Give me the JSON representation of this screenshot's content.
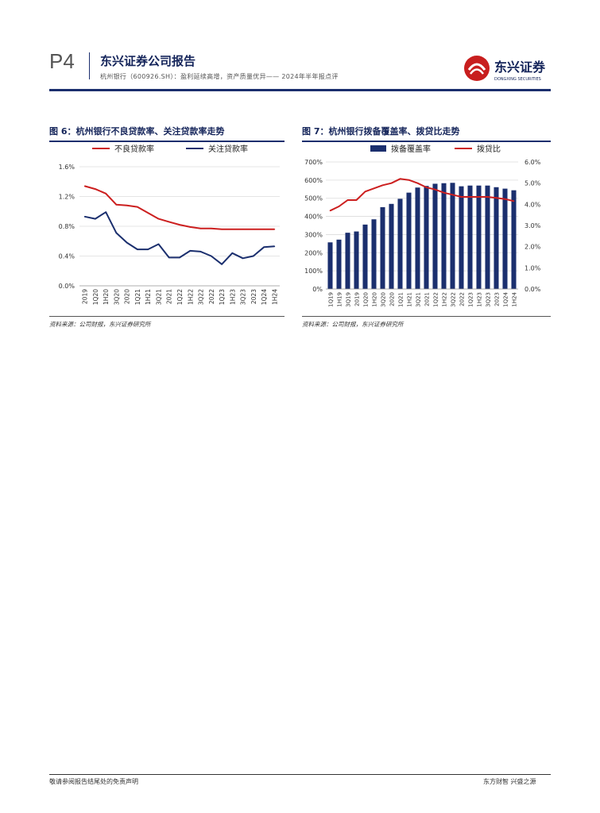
{
  "header": {
    "page_number": "P4",
    "company_title": "东兴证券公司报告",
    "subtitle": "杭州银行（600926.SH）：盈利延续高增，资产质量优异—— 2024年半年报点评",
    "logo_text": "东兴证券",
    "logo_en": "DONGXING SECURITIES"
  },
  "figure6": {
    "title": "图 6：杭州银行不良贷款率、关注贷款率走势",
    "source": "资料来源：公司财报，东兴证券研究所"
  },
  "figure7": {
    "title": "图 7：杭州银行拨备覆盖率、拨贷比走势",
    "source": "资料来源：公司财报，东兴证券研究所"
  },
  "footer": {
    "left": "敬请参阅报告结尾处的免责声明",
    "right": "东方财智  兴盛之源"
  },
  "colors": {
    "navy": "#1b2f6e",
    "red": "#cc1f1f",
    "grid": "#dcdcdc"
  },
  "chart_data": [
    {
      "type": "line",
      "categories": [
        "2019",
        "1Q20",
        "1H20",
        "3Q20",
        "2020",
        "1Q21",
        "1H21",
        "3Q21",
        "2021",
        "1Q22",
        "1H22",
        "3Q22",
        "2022",
        "1Q23",
        "1H23",
        "3Q23",
        "2023",
        "1Q24",
        "1H24"
      ],
      "series": [
        {
          "name": "不良贷款率",
          "color": "#cc1f1f",
          "values": [
            1.34,
            1.3,
            1.24,
            1.09,
            1.08,
            1.06,
            0.98,
            0.9,
            0.86,
            0.82,
            0.79,
            0.77,
            0.77,
            0.76,
            0.76,
            0.76,
            0.76,
            0.76,
            0.76
          ]
        },
        {
          "name": "关注贷款率",
          "color": "#1b2f6e",
          "values": [
            0.93,
            0.9,
            0.99,
            0.71,
            0.58,
            0.49,
            0.49,
            0.56,
            0.38,
            0.38,
            0.47,
            0.46,
            0.4,
            0.29,
            0.44,
            0.37,
            0.4,
            0.52,
            0.53
          ]
        }
      ],
      "ylim": [
        0,
        1.6
      ],
      "yticks": [
        "0.0%",
        "0.4%",
        "0.8%",
        "1.2%",
        "1.6%"
      ],
      "title": "图 6：杭州银行不良贷款率、关注贷款率走势"
    },
    {
      "type": "bar",
      "categories": [
        "1Q19",
        "1H19",
        "3Q19",
        "2019",
        "1Q20",
        "1H20",
        "3Q20",
        "2020",
        "1Q21",
        "1H21",
        "3Q21",
        "2021",
        "1Q22",
        "1H22",
        "3Q22",
        "2022",
        "1Q23",
        "1H23",
        "3Q23",
        "2023",
        "1Q24",
        "1H24"
      ],
      "series": [
        {
          "name": "拨备覆盖率",
          "type": "bar",
          "axis": "left",
          "color": "#1b2f6e",
          "values": [
            257,
            272,
            310,
            317,
            355,
            384,
            451,
            469,
            497,
            531,
            559,
            568,
            580,
            583,
            585,
            566,
            570,
            570,
            570,
            561,
            553,
            544
          ]
        },
        {
          "name": "拨贷比",
          "type": "line",
          "axis": "right",
          "color": "#cc1f1f",
          "values": [
            3.7,
            3.9,
            4.2,
            4.2,
            4.6,
            4.75,
            4.9,
            5.0,
            5.2,
            5.15,
            5.0,
            4.8,
            4.7,
            4.55,
            4.45,
            4.35,
            4.35,
            4.35,
            4.35,
            4.3,
            4.25,
            4.15
          ]
        }
      ],
      "ylim_left": [
        0,
        700
      ],
      "ylim_right": [
        0,
        6
      ],
      "yticks_left": [
        "0%",
        "100%",
        "200%",
        "300%",
        "400%",
        "500%",
        "600%",
        "700%"
      ],
      "yticks_right": [
        "0.0%",
        "1.0%",
        "2.0%",
        "3.0%",
        "4.0%",
        "5.0%",
        "6.0%"
      ],
      "title": "图 7：杭州银行拨备覆盖率、拨贷比走势"
    }
  ]
}
